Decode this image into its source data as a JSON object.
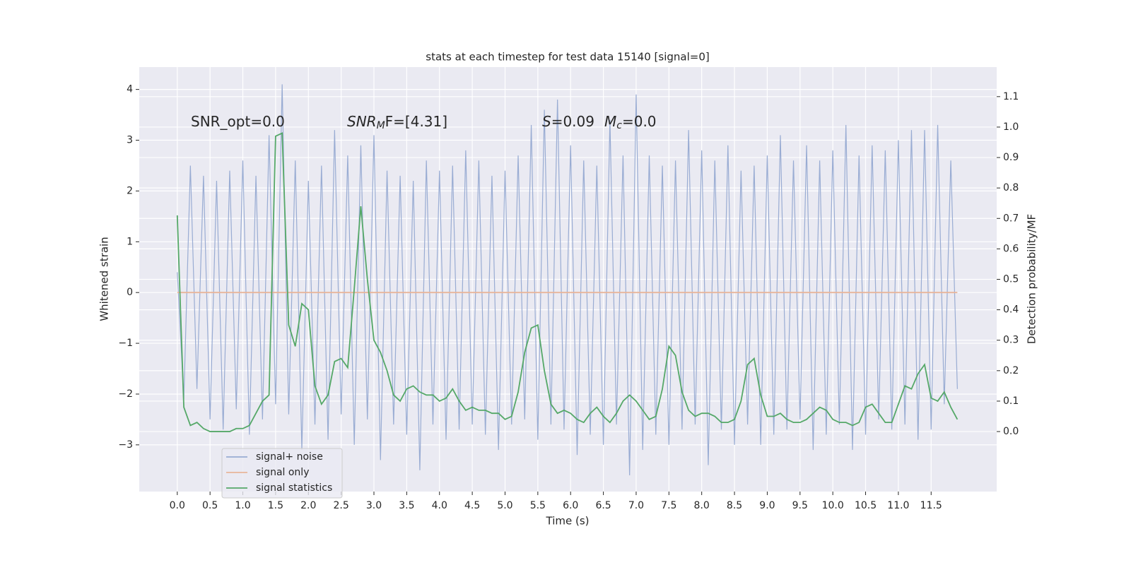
{
  "chart_data": {
    "type": "line",
    "title": "stats at each timestep for test data 15140 [signal=0]",
    "xlabel": "Time (s)",
    "ylabel": "Whitened strain",
    "y2label": "Detection probability/MF",
    "annotations": [
      [
        "SNR_opt=0.0"
      ],
      [
        "SNR",
        "M",
        "F=[4.31]"
      ],
      [
        "S",
        "=0.09",
        "M",
        "c",
        "=0.0"
      ]
    ],
    "legend": "lower left",
    "grid": true,
    "xlim": [
      -0.58,
      12.5
    ],
    "ylim": [
      -3.92,
      4.44
    ],
    "y2lim": [
      -0.197,
      1.197
    ],
    "xticks": [
      {
        "value": 0,
        "label": "0.0"
      },
      0.5,
      {
        "value": 1,
        "label": "1.0"
      },
      1.5,
      {
        "value": 2,
        "label": "2.0"
      },
      2.5,
      {
        "value": 3,
        "label": "3.0"
      },
      3.5,
      {
        "value": 4,
        "label": "4.0"
      },
      4.5,
      {
        "value": 5,
        "label": "5.0"
      },
      5.5,
      {
        "value": 6,
        "label": "6.0"
      },
      6.5,
      {
        "value": 7,
        "label": "7.0"
      },
      7.5,
      {
        "value": 8,
        "label": "8.0"
      },
      8.5,
      {
        "value": 9,
        "label": "9.0"
      },
      9.5,
      {
        "value": 10,
        "label": "10.0"
      },
      10.5,
      {
        "value": 11,
        "label": "11.0"
      },
      11.5
    ],
    "yticks": [
      {
        "value": -3,
        "label": "−3"
      },
      {
        "value": -2,
        "label": "−2"
      },
      {
        "value": -1,
        "label": "−1"
      },
      0,
      1,
      2,
      3,
      4
    ],
    "y2ticks": [
      {
        "value": 0,
        "label": "0.0"
      },
      0.1,
      0.2,
      0.3,
      0.4,
      0.5,
      0.6,
      0.7,
      0.8,
      0.9,
      {
        "value": 1,
        "label": "1.0"
      },
      1.1
    ],
    "x": [
      0,
      0.1,
      0.2,
      0.3,
      0.4,
      0.5,
      0.6,
      0.7,
      0.8,
      0.9,
      1.0,
      1.1,
      1.2,
      1.3,
      1.4,
      1.5,
      1.6,
      1.7,
      1.8,
      1.9,
      2.0,
      2.1,
      2.2,
      2.3,
      2.4,
      2.5,
      2.6,
      2.7,
      2.8,
      2.9,
      3.0,
      3.1,
      3.2,
      3.3,
      3.4,
      3.5,
      3.6,
      3.7,
      3.8,
      3.9,
      4.0,
      4.1,
      4.2,
      4.3,
      4.4,
      4.5,
      4.6,
      4.7,
      4.8,
      4.9,
      5.0,
      5.1,
      5.2,
      5.3,
      5.4,
      5.5,
      5.6,
      5.7,
      5.8,
      5.9,
      6.0,
      6.1,
      6.2,
      6.3,
      6.4,
      6.5,
      6.6,
      6.7,
      6.8,
      6.9,
      7.0,
      7.1,
      7.2,
      7.3,
      7.4,
      7.5,
      7.6,
      7.7,
      7.8,
      7.9,
      8.0,
      8.1,
      8.2,
      8.3,
      8.4,
      8.5,
      8.6,
      8.7,
      8.8,
      8.9,
      9.0,
      9.1,
      9.2,
      9.3,
      9.4,
      9.5,
      9.6,
      9.7,
      9.8,
      9.9,
      10.0,
      10.1,
      10.2,
      10.3,
      10.4,
      10.5,
      10.6,
      10.7,
      10.8,
      10.9,
      11.0,
      11.1,
      11.2,
      11.3,
      11.4,
      11.5,
      11.6,
      11.7,
      11.8,
      11.9
    ],
    "series": [
      {
        "name": "signal+ noise",
        "color": "#99acd3",
        "values": [
          0.4,
          -2.1,
          2.5,
          -1.9,
          2.3,
          -2.5,
          2.2,
          -2.7,
          2.4,
          -2.3,
          2.6,
          -2.8,
          2.3,
          -2.5,
          3.1,
          -2.2,
          4.1,
          -2.4,
          2.6,
          -3.1,
          2.2,
          -2.6,
          2.5,
          -2.9,
          3.2,
          -2.4,
          2.7,
          -3.0,
          2.9,
          -2.5,
          3.1,
          -3.3,
          2.4,
          -2.6,
          2.3,
          -2.8,
          2.2,
          -3.5,
          2.6,
          -2.6,
          2.4,
          -2.9,
          2.5,
          -2.7,
          2.8,
          -2.6,
          2.6,
          -2.8,
          2.3,
          -3.1,
          2.4,
          -2.6,
          2.7,
          -2.5,
          3.3,
          -2.9,
          3.6,
          -2.6,
          3.8,
          -2.7,
          2.9,
          -3.2,
          2.6,
          -2.8,
          2.5,
          -3.0,
          3.4,
          -2.6,
          2.7,
          -3.6,
          3.9,
          -3.1,
          2.7,
          -2.8,
          2.5,
          -3.0,
          2.6,
          -2.7,
          3.2,
          -2.6,
          2.8,
          -3.4,
          2.6,
          -2.7,
          2.9,
          -3.0,
          2.4,
          -2.6,
          2.5,
          -3.0,
          2.7,
          -2.8,
          3.1,
          -2.7,
          2.6,
          -2.5,
          2.9,
          -3.1,
          2.6,
          -2.8,
          2.8,
          -2.6,
          3.3,
          -3.1,
          2.7,
          -2.8,
          2.9,
          -2.5,
          2.8,
          -2.7,
          3.0,
          -2.6,
          3.2,
          -2.9,
          3.2,
          -2.7,
          3.3,
          -2.2,
          2.6,
          -1.9
        ]
      },
      {
        "name": "signal only",
        "color": "#e8b59a",
        "values": [
          0,
          0,
          0,
          0,
          0,
          0,
          0,
          0,
          0,
          0,
          0,
          0,
          0,
          0,
          0,
          0,
          0,
          0,
          0,
          0,
          0,
          0,
          0,
          0,
          0,
          0,
          0,
          0,
          0,
          0,
          0,
          0,
          0,
          0,
          0,
          0,
          0,
          0,
          0,
          0,
          0,
          0,
          0,
          0,
          0,
          0,
          0,
          0,
          0,
          0,
          0,
          0,
          0,
          0,
          0,
          0,
          0,
          0,
          0,
          0,
          0,
          0,
          0,
          0,
          0,
          0,
          0,
          0,
          0,
          0,
          0,
          0,
          0,
          0,
          0,
          0,
          0,
          0,
          0,
          0,
          0,
          0,
          0,
          0,
          0,
          0,
          0,
          0,
          0,
          0,
          0,
          0,
          0,
          0,
          0,
          0,
          0,
          0,
          0,
          0,
          0,
          0,
          0,
          0,
          0,
          0,
          0,
          0,
          0,
          0,
          0,
          0,
          0,
          0,
          0,
          0,
          0,
          0,
          0,
          0
        ]
      },
      {
        "name": "signal statistics",
        "color": "#55a868",
        "axis": "y2",
        "values": [
          0.71,
          0.08,
          0.02,
          0.03,
          0.01,
          0.0,
          0.0,
          0.0,
          0.0,
          0.01,
          0.01,
          0.02,
          0.06,
          0.1,
          0.12,
          0.97,
          0.98,
          0.35,
          0.28,
          0.42,
          0.4,
          0.15,
          0.09,
          0.12,
          0.23,
          0.24,
          0.21,
          0.47,
          0.74,
          0.5,
          0.3,
          0.26,
          0.2,
          0.12,
          0.1,
          0.14,
          0.15,
          0.13,
          0.12,
          0.12,
          0.1,
          0.11,
          0.14,
          0.1,
          0.07,
          0.08,
          0.07,
          0.07,
          0.06,
          0.06,
          0.04,
          0.05,
          0.13,
          0.26,
          0.34,
          0.35,
          0.2,
          0.09,
          0.06,
          0.07,
          0.06,
          0.04,
          0.03,
          0.06,
          0.08,
          0.05,
          0.03,
          0.06,
          0.1,
          0.12,
          0.1,
          0.07,
          0.04,
          0.05,
          0.14,
          0.28,
          0.25,
          0.13,
          0.07,
          0.05,
          0.06,
          0.06,
          0.05,
          0.03,
          0.03,
          0.04,
          0.1,
          0.22,
          0.24,
          0.12,
          0.05,
          0.05,
          0.06,
          0.04,
          0.03,
          0.03,
          0.04,
          0.06,
          0.08,
          0.07,
          0.04,
          0.03,
          0.03,
          0.02,
          0.03,
          0.08,
          0.09,
          0.06,
          0.03,
          0.03,
          0.09,
          0.15,
          0.14,
          0.19,
          0.22,
          0.11,
          0.1,
          0.13,
          0.08,
          0.04
        ]
      }
    ]
  }
}
